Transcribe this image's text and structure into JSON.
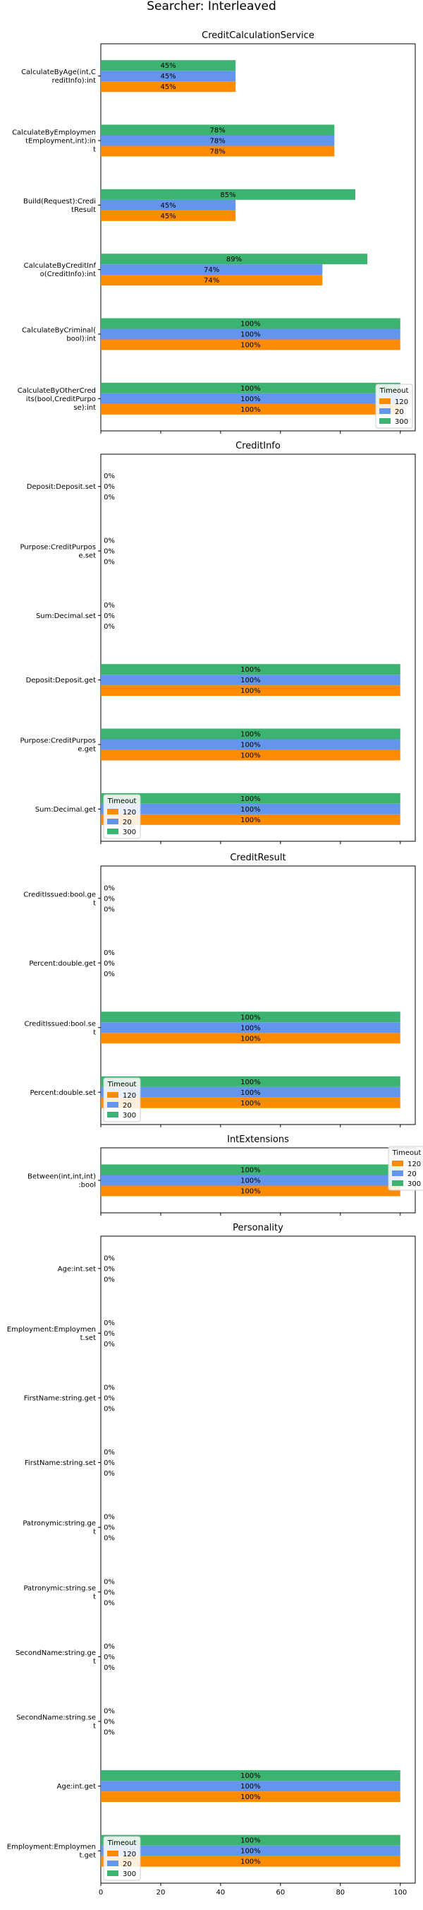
{
  "title": "Searcher: Interleaved",
  "legend": {
    "title": "Timeout"
  },
  "colors": {
    "120": "#ff8c00",
    "20": "#6495ed",
    "300": "#3cb371"
  },
  "chart_data": [
    {
      "type": "bar",
      "title": "CreditCalculationService",
      "xlim": [
        0,
        105
      ],
      "legend_position": "lower-right",
      "categories": [
        "CalculateByOtherCred its(bool,CreditPurpo se):int",
        "CalculateByCriminal( bool):int",
        "CalculateByCreditInf o(CreditInfo):int",
        "Build(Request):Credi tResult",
        "CalculateByEmploymen tEmployment,int):in t",
        "CalculateByAge(int,C reditInfo):int"
      ],
      "series": [
        {
          "name": "120",
          "values": [
            100,
            100,
            74,
            45,
            78,
            45
          ]
        },
        {
          "name": "20",
          "values": [
            100,
            100,
            74,
            45,
            78,
            45
          ]
        },
        {
          "name": "300",
          "values": [
            100,
            100,
            89,
            85,
            78,
            45
          ]
        }
      ],
      "data_labels": {
        "120": [
          "100%",
          "100%",
          "74%",
          "45%",
          "78%",
          "45%"
        ],
        "20": [
          "100%",
          "100%",
          "74%",
          "45%",
          "78%",
          "45%"
        ],
        "300": [
          "100%",
          "100%",
          "89%",
          "85%",
          "78%",
          "45%"
        ]
      }
    },
    {
      "type": "bar",
      "title": "CreditInfo",
      "xlim": [
        0,
        105
      ],
      "legend_position": "lower-left",
      "categories": [
        "Sum:Decimal.get",
        "Purpose:CreditPurpos e.get",
        "Deposit:Deposit.get",
        "Sum:Decimal.set",
        "Purpose:CreditPurpos e.set",
        "Deposit:Deposit.set"
      ],
      "series": [
        {
          "name": "120",
          "values": [
            100,
            100,
            100,
            0,
            0,
            0
          ]
        },
        {
          "name": "20",
          "values": [
            100,
            100,
            100,
            0,
            0,
            0
          ]
        },
        {
          "name": "300",
          "values": [
            100,
            100,
            100,
            0,
            0,
            0
          ]
        }
      ],
      "data_labels": {
        "120": [
          "100%",
          "100%",
          "100%",
          "0%",
          "0%",
          "0%"
        ],
        "20": [
          "100%",
          "100%",
          "100%",
          "0%",
          "0%",
          "0%"
        ],
        "300": [
          "100%",
          "100%",
          "100%",
          "0%",
          "0%",
          "0%"
        ]
      }
    },
    {
      "type": "bar",
      "title": "CreditResult",
      "xlim": [
        0,
        105
      ],
      "legend_position": "lower-left",
      "categories": [
        "Percent:double.set",
        "CreditIssued:bool.se t",
        "Percent:double.get",
        "CreditIssued:bool.ge t"
      ],
      "series": [
        {
          "name": "120",
          "values": [
            100,
            100,
            0,
            0
          ]
        },
        {
          "name": "20",
          "values": [
            100,
            100,
            0,
            0
          ]
        },
        {
          "name": "300",
          "values": [
            100,
            100,
            0,
            0
          ]
        }
      ],
      "data_labels": {
        "120": [
          "100%",
          "100%",
          "0%",
          "0%"
        ],
        "20": [
          "100%",
          "100%",
          "0%",
          "0%"
        ],
        "300": [
          "100%",
          "100%",
          "0%",
          "0%"
        ]
      }
    },
    {
      "type": "bar",
      "title": "IntExtensions",
      "xlim": [
        0,
        105
      ],
      "legend_position": "upper-right",
      "categories": [
        "Between(int,int,int) :bool"
      ],
      "series": [
        {
          "name": "120",
          "values": [
            100
          ]
        },
        {
          "name": "20",
          "values": [
            100
          ]
        },
        {
          "name": "300",
          "values": [
            100
          ]
        }
      ],
      "data_labels": {
        "120": [
          "100%"
        ],
        "20": [
          "100%"
        ],
        "300": [
          "100%"
        ]
      }
    },
    {
      "type": "bar",
      "title": "Personality",
      "xlim": [
        0,
        105
      ],
      "legend_position": "lower-left",
      "xticks": [
        0,
        20,
        40,
        60,
        80,
        100
      ],
      "categories": [
        "Employment:Employmen t.get",
        "Age:int.get",
        "SecondName:string.se t",
        "SecondName:string.ge t",
        "Patronymic:string.se t",
        "Patronymic:string.ge t",
        "FirstName:string.set",
        "FirstName:string.get",
        "Employment:Employmen t.set",
        "Age:int.set"
      ],
      "series": [
        {
          "name": "120",
          "values": [
            100,
            100,
            0,
            0,
            0,
            0,
            0,
            0,
            0,
            0
          ]
        },
        {
          "name": "20",
          "values": [
            100,
            100,
            0,
            0,
            0,
            0,
            0,
            0,
            0,
            0
          ]
        },
        {
          "name": "300",
          "values": [
            100,
            100,
            0,
            0,
            0,
            0,
            0,
            0,
            0,
            0
          ]
        }
      ],
      "data_labels": {
        "120": [
          "100%",
          "100%",
          "0%",
          "0%",
          "0%",
          "0%",
          "0%",
          "0%",
          "0%",
          "0%"
        ],
        "20": [
          "100%",
          "100%",
          "0%",
          "0%",
          "0%",
          "0%",
          "0%",
          "0%",
          "0%",
          "0%"
        ],
        "300": [
          "100%",
          "100%",
          "0%",
          "0%",
          "0%",
          "0%",
          "0%",
          "0%",
          "0%",
          "0%"
        ]
      }
    }
  ]
}
